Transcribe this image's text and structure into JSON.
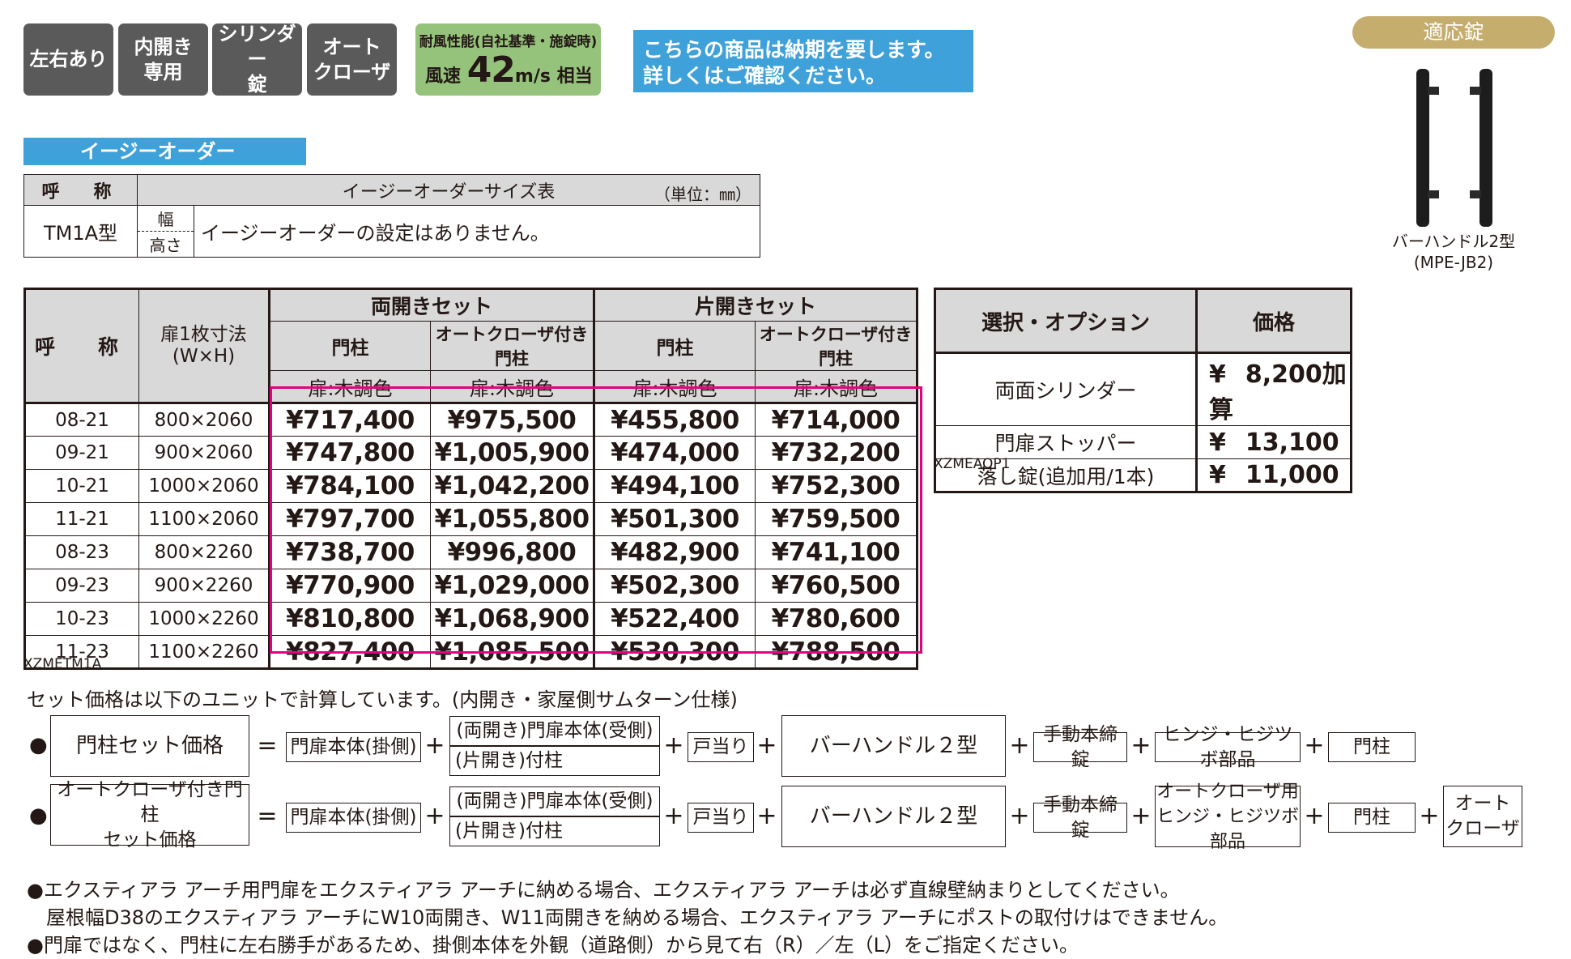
{
  "badges": [
    {
      "label": "左右あり"
    },
    {
      "label": "内開き\n専用"
    },
    {
      "label": "シリンダー\n錠"
    },
    {
      "label": "オート\nクローザ"
    }
  ],
  "wind": {
    "title": "耐風性能(自社基準・施錠時)",
    "prefix": "風速",
    "value": "42",
    "unit": "m/s",
    "suffix": "相当"
  },
  "notice": "こちらの商品は納期を要します。\n詳しくはご確認ください。",
  "lock": {
    "title": "適応錠",
    "caption": "バーハンドル2型\n(MPE-JB2)"
  },
  "easy": {
    "label": "イージーオーダー",
    "h_name": "呼　称",
    "h_table": "イージーオーダーサイズ表",
    "h_unit": "（単位：㎜）",
    "model": "TM1A型",
    "w": "幅",
    "h": "高さ",
    "message": "イージーオーダーの設定はありません。"
  },
  "price_table": {
    "h_name": "呼　称",
    "h_size": "扉1枚寸法\n(W×H)",
    "group1": "両開きセット",
    "group2": "片開きセット",
    "col_post": "門柱",
    "col_auto": "オートクローザ付き門柱",
    "door_color": "扉:木調色",
    "rows": [
      {
        "name": "08-21",
        "size": "800×2060",
        "p1": "¥717,400",
        "p2": "¥975,500",
        "p3": "¥455,800",
        "p4": "¥714,000"
      },
      {
        "name": "09-21",
        "size": "900×2060",
        "p1": "¥747,800",
        "p2": "¥1,005,900",
        "p3": "¥474,000",
        "p4": "¥732,200"
      },
      {
        "name": "10-21",
        "size": "1000×2060",
        "p1": "¥784,100",
        "p2": "¥1,042,200",
        "p3": "¥494,100",
        "p4": "¥752,300"
      },
      {
        "name": "11-21",
        "size": "1100×2060",
        "p1": "¥797,700",
        "p2": "¥1,055,800",
        "p3": "¥501,300",
        "p4": "¥759,500"
      },
      {
        "name": "08-23",
        "size": "800×2260",
        "p1": "¥738,700",
        "p2": "¥996,800",
        "p3": "¥482,900",
        "p4": "¥741,100"
      },
      {
        "name": "09-23",
        "size": "900×2260",
        "p1": "¥770,900",
        "p2": "¥1,029,000",
        "p3": "¥502,300",
        "p4": "¥760,500"
      },
      {
        "name": "10-23",
        "size": "1000×2260",
        "p1": "¥810,800",
        "p2": "¥1,068,900",
        "p3": "¥522,400",
        "p4": "¥780,600"
      },
      {
        "name": "11-23",
        "size": "1100×2260",
        "p1": "¥827,400",
        "p2": "¥1,085,500",
        "p3": "¥530,300",
        "p4": "¥788,500"
      }
    ],
    "code": "XZMETM1A",
    "highlight_color": "#e4007f"
  },
  "options": {
    "h_option": "選択・オプション",
    "h_price": "価格",
    "rows": [
      {
        "label": "両面シリンダー",
        "yen": "¥",
        "price": "8,200加算"
      },
      {
        "label": "門扉ストッパー",
        "yen": "¥",
        "price": "13,100"
      },
      {
        "label": "落し錠(追加用/1本)",
        "yen": "¥",
        "price": "11,000"
      }
    ],
    "code": "XZMEAOP1"
  },
  "formula": {
    "intro": "セット価格は以下のユニットで計算しています。(内開き・家屋側サムターン仕様)",
    "bullet": "●",
    "eq": "=",
    "plus": "+",
    "row1": {
      "name": "門柱セット価格",
      "a": "門扉本体(掛側)",
      "b1": "(両開き)門扉本体(受側)",
      "b2": "(片開き)付柱",
      "c": "戸当り",
      "d": "バーハンドル２型",
      "e": "手動本締錠",
      "f": "ヒンジ・ヒジツボ部品",
      "g": "門柱"
    },
    "row2": {
      "name": "オートクローザ付き門柱\nセット価格",
      "a": "門扉本体(掛側)",
      "b1": "(両開き)門扉本体(受側)",
      "b2": "(片開き)付柱",
      "c": "戸当り",
      "d": "バーハンドル２型",
      "e": "手動本締錠",
      "f": "オートクローザ用\nヒンジ・ヒジツボ部品",
      "g": "門柱",
      "h": "オート\nクローザ"
    }
  },
  "notes": [
    "●エクスティアラ アーチ用門扉をエクスティアラ アーチに納める場合、エクスティアラ アーチは必ず直線壁納まりとしてください。",
    "　屋根幅D38のエクスティアラ アーチにW10両開き、W11両開きを納める場合、エクスティアラ アーチにポストの取付けはできません。",
    "●門扉ではなく、門柱に左右勝手があるため、掛側本体を外観（道路側）から見て右（R）／左（L）をご指定ください。"
  ]
}
